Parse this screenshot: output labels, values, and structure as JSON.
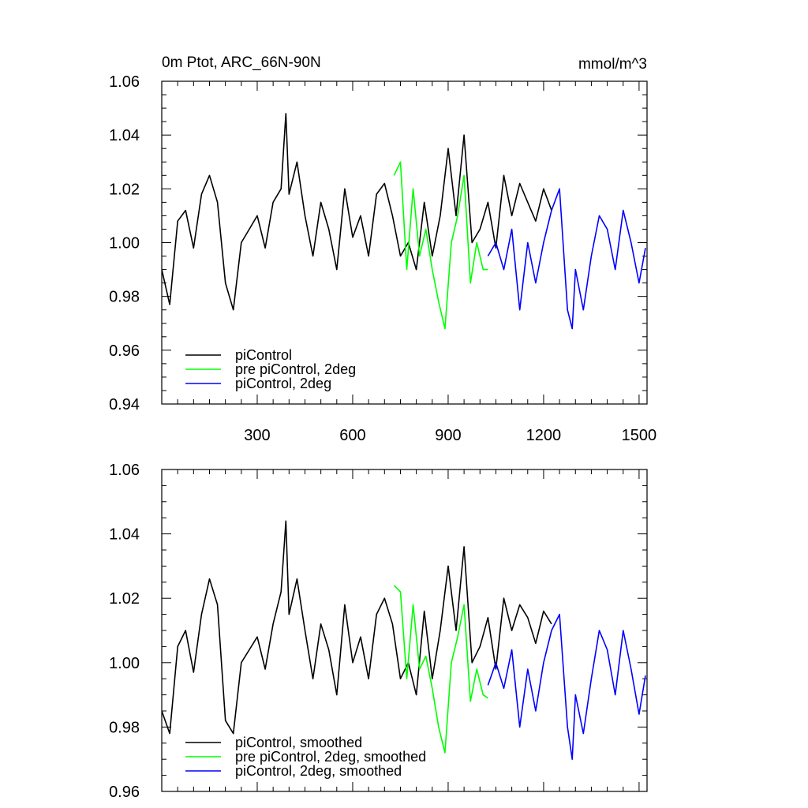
{
  "chart_data": [
    {
      "type": "line",
      "title_left": "0m Ptot, ARC_66N-90N",
      "title_right": "mmol/m^3",
      "xlim": [
        0,
        1525
      ],
      "ylim": [
        0.94,
        1.06
      ],
      "yticks": [
        0.94,
        0.96,
        0.98,
        1.0,
        1.02,
        1.04,
        1.06
      ],
      "ytick_labels": [
        "0.94",
        "0.96",
        "0.98",
        "1.00",
        "1.02",
        "1.04",
        "1.06"
      ],
      "xticks": [
        300,
        600,
        900,
        1200,
        1500
      ],
      "xtick_labels": [
        "300",
        "600",
        "900",
        "1200",
        "1500"
      ],
      "series": [
        {
          "name": "piControl",
          "color": "#000000",
          "x": [
            0,
            25,
            50,
            75,
            100,
            125,
            150,
            175,
            200,
            225,
            250,
            275,
            300,
            325,
            350,
            375,
            390,
            400,
            425,
            450,
            475,
            500,
            525,
            550,
            575,
            600,
            625,
            650,
            675,
            700,
            725,
            750,
            775,
            800,
            825,
            850,
            875,
            900,
            925,
            950,
            975,
            1000,
            1025,
            1050,
            1075,
            1100,
            1125,
            1150,
            1175,
            1200,
            1225
          ],
          "values": [
            0.99,
            0.977,
            1.008,
            1.012,
            0.998,
            1.018,
            1.025,
            1.015,
            0.985,
            0.975,
            1.0,
            1.005,
            1.01,
            0.998,
            1.015,
            1.02,
            1.048,
            1.018,
            1.03,
            1.01,
            0.995,
            1.015,
            1.005,
            0.99,
            1.02,
            1.002,
            1.01,
            0.995,
            1.018,
            1.022,
            1.01,
            0.995,
            1.0,
            0.99,
            1.015,
            0.995,
            1.01,
            1.035,
            1.01,
            1.04,
            1.0,
            1.005,
            1.015,
            0.998,
            1.025,
            1.01,
            1.022,
            1.015,
            1.008,
            1.02,
            1.012
          ]
        },
        {
          "name": "pre piControl, 2deg",
          "color": "#00ff00",
          "x": [
            730,
            750,
            770,
            790,
            810,
            830,
            850,
            870,
            890,
            910,
            930,
            950,
            970,
            990,
            1010,
            1025
          ],
          "values": [
            1.025,
            1.03,
            0.99,
            1.02,
            0.995,
            1.005,
            0.99,
            0.978,
            0.968,
            1.0,
            1.01,
            1.025,
            0.985,
            1.0,
            0.99,
            0.99
          ]
        },
        {
          "name": "piControl, 2deg",
          "color": "#0000ff",
          "x": [
            1025,
            1050,
            1075,
            1100,
            1125,
            1150,
            1175,
            1200,
            1225,
            1250,
            1275,
            1290,
            1300,
            1325,
            1350,
            1375,
            1400,
            1425,
            1450,
            1475,
            1500,
            1520
          ],
          "values": [
            0.995,
            1.0,
            0.99,
            1.005,
            0.975,
            1.0,
            0.985,
            1.0,
            1.012,
            1.02,
            0.975,
            0.968,
            0.99,
            0.975,
            0.995,
            1.01,
            1.005,
            0.99,
            1.012,
            1.0,
            0.985,
            0.998
          ]
        }
      ],
      "legend": [
        "piControl",
        "pre piControl, 2deg",
        "piControl, 2deg"
      ]
    },
    {
      "type": "line",
      "xlim": [
        0,
        1525
      ],
      "ylim": [
        0.96,
        1.06
      ],
      "yticks": [
        0.96,
        0.98,
        1.0,
        1.02,
        1.04,
        1.06
      ],
      "ytick_labels": [
        "0.96",
        "0.98",
        "1.00",
        "1.02",
        "1.04",
        "1.06"
      ],
      "xticks": [
        300,
        600,
        900,
        1200,
        1500
      ],
      "series": [
        {
          "name": "piControl, smoothed",
          "color": "#000000",
          "x": [
            0,
            25,
            50,
            75,
            100,
            125,
            150,
            175,
            200,
            225,
            250,
            275,
            300,
            325,
            350,
            375,
            390,
            400,
            425,
            450,
            475,
            500,
            525,
            550,
            575,
            600,
            625,
            650,
            675,
            700,
            725,
            750,
            775,
            800,
            825,
            850,
            875,
            900,
            925,
            950,
            975,
            1000,
            1025,
            1050,
            1075,
            1100,
            1125,
            1150,
            1175,
            1200,
            1225
          ],
          "values": [
            0.985,
            0.978,
            1.005,
            1.01,
            0.997,
            1.015,
            1.026,
            1.018,
            0.982,
            0.978,
            1.0,
            1.004,
            1.008,
            0.998,
            1.012,
            1.022,
            1.044,
            1.015,
            1.026,
            1.01,
            0.995,
            1.012,
            1.004,
            0.99,
            1.018,
            1.0,
            1.008,
            0.995,
            1.015,
            1.02,
            1.012,
            0.995,
            1.0,
            0.99,
            1.016,
            0.995,
            1.01,
            1.03,
            1.01,
            1.036,
            1.0,
            1.005,
            1.014,
            0.998,
            1.02,
            1.01,
            1.018,
            1.014,
            1.006,
            1.016,
            1.012
          ]
        },
        {
          "name": "pre piControl, 2deg, smoothed",
          "color": "#00ff00",
          "x": [
            730,
            750,
            770,
            790,
            810,
            830,
            850,
            870,
            890,
            910,
            930,
            950,
            970,
            990,
            1010,
            1025
          ],
          "values": [
            1.024,
            1.022,
            0.995,
            1.018,
            0.998,
            1.002,
            0.992,
            0.98,
            0.972,
            1.0,
            1.008,
            1.018,
            0.988,
            0.998,
            0.99,
            0.989
          ]
        },
        {
          "name": "piControl, 2deg, smoothed",
          "color": "#0000ff",
          "x": [
            1025,
            1050,
            1075,
            1100,
            1125,
            1150,
            1175,
            1200,
            1225,
            1250,
            1275,
            1290,
            1300,
            1325,
            1350,
            1375,
            1400,
            1425,
            1450,
            1475,
            1500,
            1520
          ],
          "values": [
            0.993,
            1.0,
            0.992,
            1.004,
            0.98,
            0.998,
            0.985,
            1.0,
            1.01,
            1.015,
            0.98,
            0.97,
            0.99,
            0.978,
            0.995,
            1.01,
            1.004,
            0.99,
            1.01,
            0.998,
            0.984,
            0.996
          ]
        }
      ],
      "legend": [
        "piControl, smoothed",
        "pre piControl, 2deg, smoothed",
        "piControl, 2deg, smoothed"
      ]
    }
  ]
}
